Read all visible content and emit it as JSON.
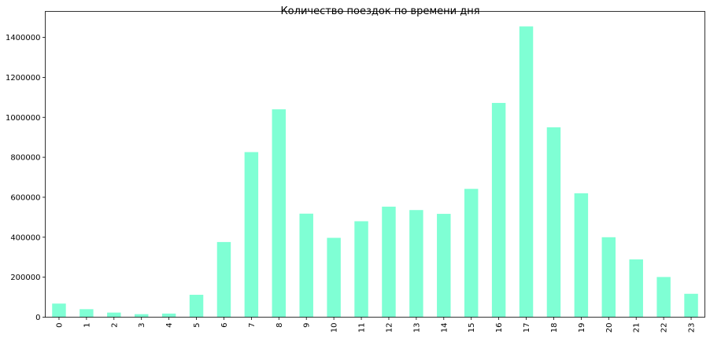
{
  "chart_data": {
    "type": "bar",
    "title": "Количество поездок по времени дня",
    "xlabel": "",
    "ylabel": "",
    "categories": [
      "0",
      "1",
      "2",
      "3",
      "4",
      "5",
      "6",
      "7",
      "8",
      "9",
      "10",
      "11",
      "12",
      "13",
      "14",
      "15",
      "16",
      "17",
      "18",
      "19",
      "20",
      "21",
      "22",
      "23"
    ],
    "values": [
      68000,
      40000,
      23000,
      15000,
      18000,
      112000,
      376000,
      826000,
      1040000,
      518000,
      397000,
      480000,
      553000,
      536000,
      517000,
      642000,
      1072000,
      1455000,
      950000,
      620000,
      400000,
      289000,
      201000,
      117000
    ],
    "ylim": [
      0,
      1530000
    ],
    "yticks": [
      "0",
      "200000",
      "400000",
      "600000",
      "800000",
      "1000000",
      "1200000",
      "1400000"
    ],
    "bar_color": "#7fffd4",
    "grid": false,
    "legend": "none"
  }
}
